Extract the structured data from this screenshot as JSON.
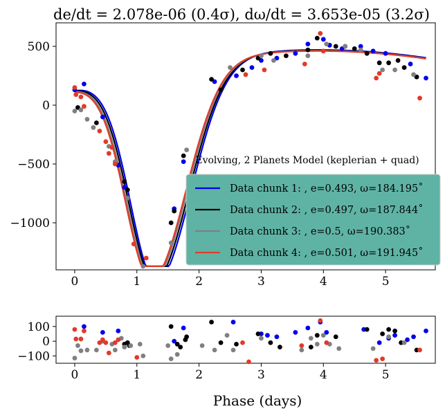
{
  "chart_data": [
    {
      "type": "scatter",
      "title": "de/dt = 2.078e-06  (0.4σ),  dω/dt = 3.653e-05 (3.2σ)",
      "xlim": [
        -0.3,
        5.8
      ],
      "ylim": [
        -1400,
        700
      ],
      "xticks": [
        0,
        1,
        2,
        3,
        4,
        5
      ],
      "yticks": [
        500,
        0,
        -500,
        -1000
      ],
      "grid": false,
      "legend": {
        "title": "Evolving, 2 Planets Model (keplerian + quad)",
        "placement": "lower-right",
        "background": "#5fb3a5"
      },
      "series": [
        {
          "name": "Data chunk 1: , e=0.493, ω=184.195˚",
          "color": "#0000ee",
          "points": [
            [
              0.0,
              130
            ],
            [
              0.15,
              180
            ],
            [
              0.45,
              -100
            ],
            [
              0.7,
              -510
            ],
            [
              0.8,
              -700
            ],
            [
              1.6,
              -880
            ],
            [
              1.75,
              -480
            ],
            [
              2.25,
              200
            ],
            [
              2.6,
              250
            ],
            [
              2.85,
              320
            ],
            [
              3.0,
              380
            ],
            [
              3.25,
              400
            ],
            [
              3.55,
              440
            ],
            [
              3.75,
              520
            ],
            [
              4.0,
              560
            ],
            [
              4.1,
              510
            ],
            [
              4.3,
              480
            ],
            [
              4.6,
              500
            ],
            [
              4.8,
              460
            ],
            [
              5.0,
              440
            ],
            [
              5.4,
              350
            ],
            [
              5.65,
              230
            ]
          ]
        },
        {
          "name": "Data chunk 2: , e=0.497, ω=187.844˚",
          "color": "#000000",
          "points": [
            [
              0.05,
              -20
            ],
            [
              0.35,
              -150
            ],
            [
              0.8,
              -650
            ],
            [
              0.85,
              -720
            ],
            [
              1.55,
              -1000
            ],
            [
              1.6,
              -900
            ],
            [
              1.75,
              -430
            ],
            [
              2.2,
              220
            ],
            [
              2.35,
              130
            ],
            [
              2.7,
              300
            ],
            [
              2.95,
              400
            ],
            [
              3.15,
              440
            ],
            [
              3.4,
              420
            ],
            [
              3.75,
              470
            ],
            [
              3.9,
              570
            ],
            [
              4.2,
              500
            ],
            [
              4.35,
              500
            ],
            [
              4.5,
              480
            ],
            [
              4.7,
              440
            ],
            [
              4.9,
              360
            ],
            [
              5.05,
              360
            ],
            [
              5.2,
              380
            ],
            [
              5.3,
              320
            ],
            [
              5.5,
              240
            ]
          ]
        },
        {
          "name": "Data chunk 3: , e=0.5, ω=190.383˚",
          "color": "#808080",
          "points": [
            [
              0.0,
              -50
            ],
            [
              0.1,
              -40
            ],
            [
              0.2,
              -120
            ],
            [
              0.3,
              -190
            ],
            [
              0.55,
              -350
            ],
            [
              0.65,
              -480
            ],
            [
              0.85,
              -790
            ],
            [
              1.1,
              -1370
            ],
            [
              1.55,
              -1170
            ],
            [
              1.8,
              -380
            ],
            [
              2.5,
              320
            ],
            [
              3.0,
              420
            ],
            [
              3.2,
              380
            ],
            [
              3.75,
              420
            ],
            [
              4.05,
              520
            ],
            [
              4.35,
              500
            ],
            [
              4.6,
              470
            ],
            [
              4.95,
              300
            ],
            [
              5.15,
              300
            ],
            [
              5.45,
              260
            ]
          ]
        },
        {
          "name": "Data chunk 4: , e=0.501, ω=191.945˚",
          "color": "#e23a2a",
          "points": [
            [
              0.0,
              150
            ],
            [
              0.02,
              90
            ],
            [
              0.1,
              70
            ],
            [
              0.15,
              -10
            ],
            [
              0.4,
              -220
            ],
            [
              0.5,
              -310
            ],
            [
              0.55,
              -410
            ],
            [
              0.6,
              -360
            ],
            [
              0.65,
              -500
            ],
            [
              0.95,
              -1180
            ],
            [
              1.15,
              -1300
            ],
            [
              2.75,
              260
            ],
            [
              3.05,
              300
            ],
            [
              3.7,
              350
            ],
            [
              3.95,
              610
            ],
            [
              4.0,
              460
            ],
            [
              4.85,
              230
            ],
            [
              4.9,
              270
            ],
            [
              5.55,
              60
            ]
          ]
        }
      ]
    },
    {
      "type": "scatter",
      "xlabel": "Phase (days)",
      "xlim": [
        -0.3,
        5.8
      ],
      "ylim": [
        -150,
        170
      ],
      "xticks": [
        0,
        1,
        2,
        3,
        4,
        5
      ],
      "yticks": [
        100,
        0,
        -100
      ],
      "grid": false,
      "series": [
        {
          "color": "#0000ee",
          "points": [
            [
              0.15,
              100
            ],
            [
              0.45,
              60
            ],
            [
              0.7,
              70
            ],
            [
              1.6,
              0
            ],
            [
              1.75,
              90
            ],
            [
              2.55,
              130
            ],
            [
              3.0,
              50
            ],
            [
              3.1,
              40
            ],
            [
              3.25,
              30
            ],
            [
              3.55,
              60
            ],
            [
              3.75,
              90
            ],
            [
              3.95,
              130
            ],
            [
              4.05,
              60
            ],
            [
              4.65,
              80
            ],
            [
              4.9,
              -10
            ],
            [
              5.05,
              20
            ],
            [
              5.15,
              40
            ],
            [
              5.35,
              10
            ],
            [
              5.45,
              30
            ],
            [
              5.65,
              70
            ]
          ]
        },
        {
          "color": "#000000",
          "points": [
            [
              0.8,
              -20
            ],
            [
              0.85,
              -10
            ],
            [
              0.88,
              -30
            ],
            [
              1.55,
              100
            ],
            [
              1.65,
              -20
            ],
            [
              1.7,
              -40
            ],
            [
              1.8,
              30
            ],
            [
              1.78,
              10
            ],
            [
              2.2,
              130
            ],
            [
              2.35,
              -10
            ],
            [
              2.6,
              -20
            ],
            [
              2.95,
              50
            ],
            [
              3.15,
              -10
            ],
            [
              3.3,
              -40
            ],
            [
              3.8,
              -40
            ],
            [
              3.9,
              40
            ],
            [
              4.2,
              30
            ],
            [
              4.7,
              80
            ],
            [
              4.95,
              50
            ],
            [
              5.05,
              80
            ],
            [
              5.15,
              70
            ],
            [
              5.25,
              -10
            ],
            [
              5.5,
              -60
            ]
          ]
        },
        {
          "color": "#808080",
          "points": [
            [
              0.0,
              -115
            ],
            [
              0.05,
              -30
            ],
            [
              0.1,
              -65
            ],
            [
              0.2,
              -60
            ],
            [
              0.35,
              -60
            ],
            [
              0.45,
              0
            ],
            [
              0.6,
              -20
            ],
            [
              0.65,
              -60
            ],
            [
              0.75,
              20
            ],
            [
              0.8,
              -40
            ],
            [
              0.9,
              -30
            ],
            [
              1.05,
              -20
            ],
            [
              1.1,
              -100
            ],
            [
              1.5,
              -30
            ],
            [
              1.55,
              -120
            ],
            [
              1.65,
              -90
            ],
            [
              2.05,
              -30
            ],
            [
              2.25,
              -60
            ],
            [
              2.45,
              40
            ],
            [
              2.55,
              -60
            ],
            [
              3.0,
              20
            ],
            [
              3.65,
              -60
            ],
            [
              3.8,
              20
            ],
            [
              3.9,
              -20
            ],
            [
              4.0,
              40
            ],
            [
              4.1,
              -20
            ],
            [
              4.25,
              -50
            ],
            [
              4.8,
              -50
            ],
            [
              5.05,
              30
            ],
            [
              5.3,
              -10
            ]
          ]
        },
        {
          "color": "#e23a2a",
          "points": [
            [
              0.0,
              80
            ],
            [
              0.02,
              15
            ],
            [
              0.1,
              15
            ],
            [
              0.15,
              70
            ],
            [
              0.4,
              -10
            ],
            [
              0.45,
              10
            ],
            [
              0.5,
              -10
            ],
            [
              0.55,
              -80
            ],
            [
              0.65,
              -10
            ],
            [
              0.7,
              10
            ],
            [
              1.0,
              -110
            ],
            [
              2.7,
              -10
            ],
            [
              2.8,
              -140
            ],
            [
              3.65,
              -30
            ],
            [
              3.95,
              140
            ],
            [
              4.05,
              -10
            ],
            [
              4.85,
              -130
            ],
            [
              4.95,
              -120
            ],
            [
              5.55,
              -60
            ]
          ]
        }
      ]
    }
  ]
}
